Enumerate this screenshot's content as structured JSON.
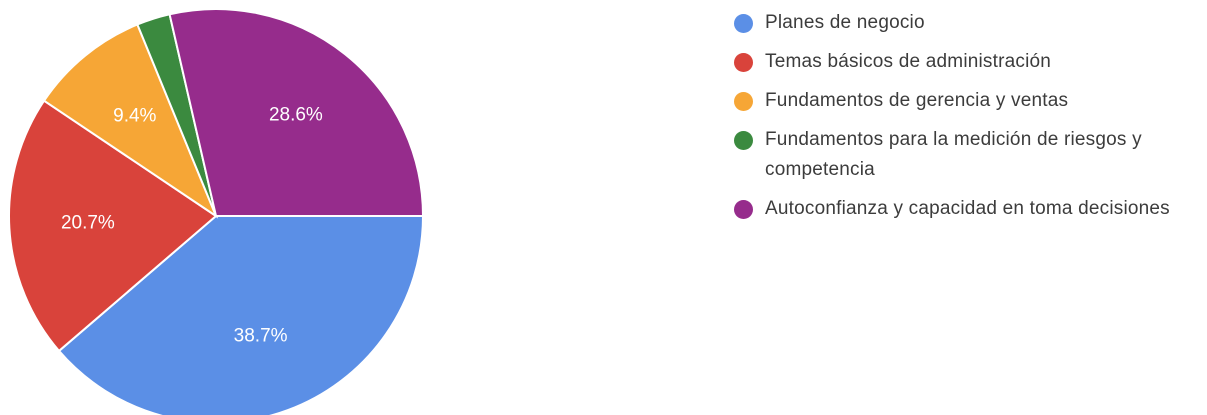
{
  "chart_data": {
    "type": "pie",
    "title": "",
    "slices": [
      {
        "label": "Planes de negocio",
        "value": 38.7,
        "value_label": "38.7%",
        "color": "#5b8fe6"
      },
      {
        "label": "Temas básicos de administración",
        "value": 20.7,
        "value_label": "20.7%",
        "color": "#d9433b"
      },
      {
        "label": "Fundamentos de gerencia y ventas",
        "value": 9.4,
        "value_label": "9.4%",
        "color": "#f6a636"
      },
      {
        "label": "Fundamentos para la medición de riesgos y competencia",
        "value": 2.6,
        "value_label": "",
        "color": "#3b8a3f"
      },
      {
        "label": "Autoconfianza y capacidad en toma decisiones",
        "value": 28.6,
        "value_label": "28.6%",
        "color": "#962c8c"
      }
    ],
    "start_direction": "east",
    "direction": "clockwise",
    "legend_placement": "right"
  }
}
